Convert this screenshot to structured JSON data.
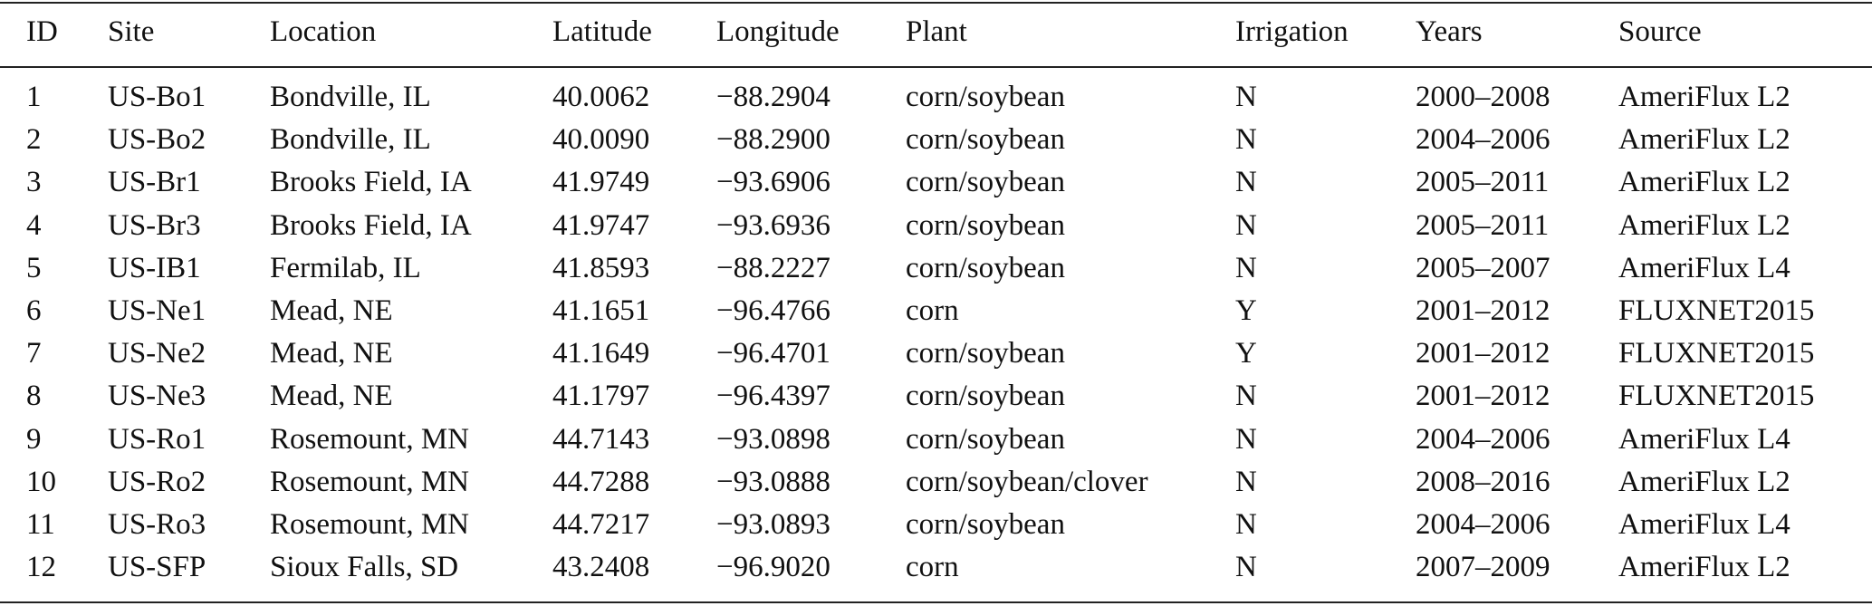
{
  "table": {
    "header": [
      "ID",
      "Site",
      "Location",
      "Latitude",
      "Longitude",
      "Plant",
      "Irrigation",
      "Years",
      "Source"
    ],
    "rows": [
      [
        "1",
        "US-Bo1",
        "Bondville, IL",
        "40.0062",
        "−88.2904",
        "corn/soybean",
        "N",
        "2000–2008",
        "AmeriFlux L2"
      ],
      [
        "2",
        "US-Bo2",
        "Bondville, IL",
        "40.0090",
        "−88.2900",
        "corn/soybean",
        "N",
        "2004–2006",
        "AmeriFlux L2"
      ],
      [
        "3",
        "US-Br1",
        "Brooks Field, IA",
        "41.9749",
        "−93.6906",
        "corn/soybean",
        "N",
        "2005–2011",
        "AmeriFlux L2"
      ],
      [
        "4",
        "US-Br3",
        "Brooks Field, IA",
        "41.9747",
        "−93.6936",
        "corn/soybean",
        "N",
        "2005–2011",
        "AmeriFlux L2"
      ],
      [
        "5",
        "US-IB1",
        "Fermilab, IL",
        "41.8593",
        "−88.2227",
        "corn/soybean",
        "N",
        "2005–2007",
        "AmeriFlux L4"
      ],
      [
        "6",
        "US-Ne1",
        "Mead, NE",
        "41.1651",
        "−96.4766",
        "corn",
        "Y",
        "2001–2012",
        "FLUXNET2015"
      ],
      [
        "7",
        "US-Ne2",
        "Mead, NE",
        "41.1649",
        "−96.4701",
        "corn/soybean",
        "Y",
        "2001–2012",
        "FLUXNET2015"
      ],
      [
        "8",
        "US-Ne3",
        "Mead, NE",
        "41.1797",
        "−96.4397",
        "corn/soybean",
        "N",
        "2001–2012",
        "FLUXNET2015"
      ],
      [
        "9",
        "US-Ro1",
        "Rosemount, MN",
        "44.7143",
        "−93.0898",
        "corn/soybean",
        "N",
        "2004–2006",
        "AmeriFlux L4"
      ],
      [
        "10",
        "US-Ro2",
        "Rosemount, MN",
        "44.7288",
        "−93.0888",
        "corn/soybean/clover",
        "N",
        "2008–2016",
        "AmeriFlux L2"
      ],
      [
        "11",
        "US-Ro3",
        "Rosemount, MN",
        "44.7217",
        "−93.0893",
        "corn/soybean",
        "N",
        "2004–2006",
        "AmeriFlux L4"
      ],
      [
        "12",
        "US-SFP",
        "Sioux Falls, SD",
        "43.2408",
        "−96.9020",
        "corn",
        "N",
        "2007–2009",
        "AmeriFlux L2"
      ]
    ]
  }
}
